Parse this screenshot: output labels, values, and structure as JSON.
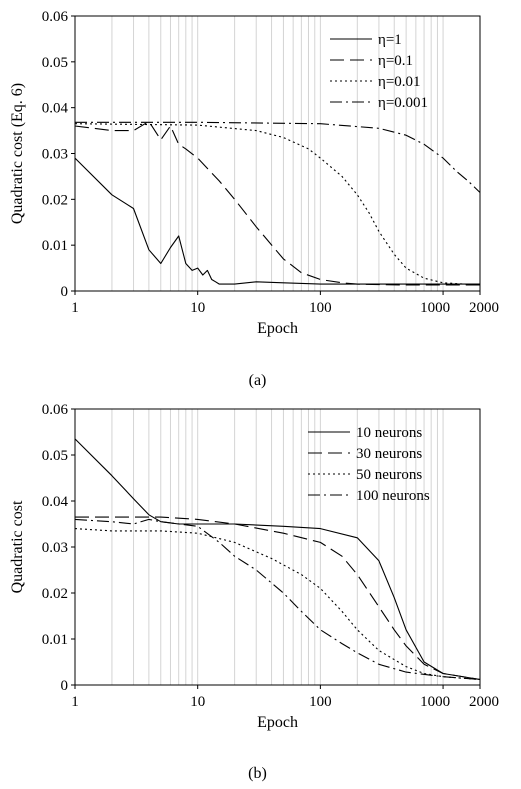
{
  "chart_data": [
    {
      "type": "line",
      "caption": "(a)",
      "xlabel": "Epoch",
      "ylabel": "Quadratic cost (Eq. 6)",
      "xscale": "log",
      "xlim": [
        1,
        2000
      ],
      "ylim": [
        0,
        0.06
      ],
      "xticks": [
        "1",
        "10",
        "100",
        "1000",
        "2000"
      ],
      "yticks": [
        "0",
        "0.01",
        "0.02",
        "0.03",
        "0.04",
        "0.05",
        "0.06"
      ],
      "grid": "vertical minor log gridlines",
      "legend_position": "top-right",
      "series": [
        {
          "name": "η=1",
          "dash": "solid",
          "x": [
            1,
            2,
            3,
            4,
            5,
            6,
            7,
            8,
            9,
            10,
            11,
            12,
            13,
            14,
            15,
            20,
            30,
            50,
            100,
            200,
            500,
            1000,
            2000
          ],
          "y": [
            0.029,
            0.021,
            0.018,
            0.009,
            0.006,
            0.0095,
            0.012,
            0.006,
            0.0045,
            0.005,
            0.0035,
            0.0045,
            0.0025,
            0.002,
            0.0015,
            0.0015,
            0.002,
            0.0018,
            0.0015,
            0.0015,
            0.0015,
            0.0015,
            0.0015
          ]
        },
        {
          "name": "η=0.1",
          "dash": "long-dash",
          "x": [
            1,
            2,
            3,
            4,
            5,
            6,
            7,
            8,
            10,
            15,
            20,
            30,
            50,
            70,
            100,
            150,
            200,
            300,
            500,
            1000,
            2000
          ],
          "y": [
            0.036,
            0.035,
            0.035,
            0.037,
            0.033,
            0.036,
            0.032,
            0.031,
            0.029,
            0.024,
            0.02,
            0.014,
            0.007,
            0.004,
            0.0025,
            0.0018,
            0.0015,
            0.0014,
            0.0013,
            0.0013,
            0.0013
          ]
        },
        {
          "name": "η=0.01",
          "dash": "dotted",
          "x": [
            1,
            10,
            30,
            50,
            80,
            100,
            150,
            200,
            250,
            300,
            400,
            500,
            700,
            1000,
            1500,
            2000
          ],
          "y": [
            0.0365,
            0.0362,
            0.035,
            0.0335,
            0.031,
            0.029,
            0.025,
            0.021,
            0.017,
            0.013,
            0.008,
            0.005,
            0.0028,
            0.0018,
            0.0015,
            0.0015
          ]
        },
        {
          "name": "η=0.001",
          "dash": "dash-dot",
          "x": [
            1,
            10,
            100,
            300,
            500,
            700,
            1000,
            1300,
            1600,
            2000
          ],
          "y": [
            0.0368,
            0.0368,
            0.0365,
            0.0355,
            0.034,
            0.032,
            0.029,
            0.026,
            0.024,
            0.0215
          ]
        }
      ]
    },
    {
      "type": "line",
      "caption": "(b)",
      "xlabel": "Epoch",
      "ylabel": "Quadratic cost",
      "xscale": "log",
      "xlim": [
        1,
        2000
      ],
      "ylim": [
        0,
        0.06
      ],
      "xticks": [
        "1",
        "10",
        "100",
        "1000",
        "2000"
      ],
      "yticks": [
        "0",
        "0.01",
        "0.02",
        "0.03",
        "0.04",
        "0.05",
        "0.06"
      ],
      "grid": "vertical minor log gridlines",
      "legend_position": "top-right",
      "series": [
        {
          "name": "10 neurons",
          "dash": "solid",
          "x": [
            1,
            2,
            3,
            4,
            5,
            7,
            10,
            20,
            50,
            100,
            200,
            300,
            400,
            500,
            700,
            1000,
            2000
          ],
          "y": [
            0.0535,
            0.0455,
            0.0405,
            0.037,
            0.0355,
            0.035,
            0.035,
            0.035,
            0.0345,
            0.034,
            0.032,
            0.027,
            0.019,
            0.012,
            0.005,
            0.0025,
            0.0012
          ]
        },
        {
          "name": "30 neurons",
          "dash": "long-dash",
          "x": [
            1,
            3,
            5,
            10,
            20,
            50,
            100,
            150,
            200,
            300,
            400,
            500,
            700,
            1000,
            2000
          ],
          "y": [
            0.0365,
            0.0365,
            0.0365,
            0.036,
            0.035,
            0.033,
            0.031,
            0.028,
            0.024,
            0.017,
            0.012,
            0.0085,
            0.0045,
            0.0025,
            0.0012
          ]
        },
        {
          "name": "50 neurons",
          "dash": "dotted",
          "x": [
            1,
            2,
            3,
            5,
            10,
            20,
            40,
            70,
            100,
            150,
            200,
            300,
            500,
            700,
            1000,
            2000
          ],
          "y": [
            0.034,
            0.0335,
            0.0335,
            0.0335,
            0.033,
            0.031,
            0.0275,
            0.024,
            0.021,
            0.016,
            0.012,
            0.0075,
            0.004,
            0.0025,
            0.0018,
            0.0012
          ]
        },
        {
          "name": "100 neurons",
          "dash": "dash-dot",
          "x": [
            1,
            2,
            3,
            4,
            5,
            10,
            15,
            20,
            30,
            50,
            70,
            100,
            150,
            200,
            300,
            500,
            1000,
            2000
          ],
          "y": [
            0.036,
            0.0355,
            0.035,
            0.036,
            0.0355,
            0.0345,
            0.031,
            0.028,
            0.025,
            0.02,
            0.016,
            0.012,
            0.009,
            0.007,
            0.0045,
            0.0028,
            0.0018,
            0.0012
          ]
        }
      ]
    }
  ]
}
